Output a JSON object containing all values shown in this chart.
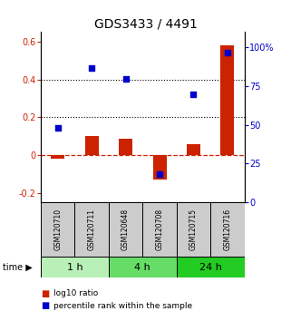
{
  "title": "GDS3433 / 4491",
  "samples": [
    "GSM120710",
    "GSM120711",
    "GSM120648",
    "GSM120708",
    "GSM120715",
    "GSM120716"
  ],
  "log10_ratio": [
    -0.02,
    0.1,
    0.085,
    -0.13,
    0.055,
    0.58
  ],
  "percentile_rank": [
    48,
    87,
    80,
    18,
    70,
    97
  ],
  "time_groups": [
    {
      "label": "1 h",
      "color": "#b8f0b8",
      "start": 0,
      "end": 2
    },
    {
      "label": "4 h",
      "color": "#66dd66",
      "start": 2,
      "end": 4
    },
    {
      "label": "24 h",
      "color": "#22cc22",
      "start": 4,
      "end": 6
    }
  ],
  "ylim_left": [
    -0.25,
    0.65
  ],
  "ylim_right": [
    0,
    110
  ],
  "yticks_left": [
    -0.2,
    0.0,
    0.2,
    0.4,
    0.6
  ],
  "ytick_labels_left": [
    "-0.2",
    "0",
    "0.2",
    "0.4",
    "0.6"
  ],
  "yticks_right": [
    0,
    25,
    50,
    75,
    100
  ],
  "ytick_labels_right": [
    "0",
    "25",
    "50",
    "75",
    "100%"
  ],
  "hlines": [
    0.2,
    0.4
  ],
  "bar_color_red": "#cc2200",
  "bar_color_blue": "#0000cc",
  "marker_size": 25,
  "bar_width": 0.4,
  "dashed_zero_color": "#cc2200",
  "sample_box_color": "#cccccc",
  "title_fontsize": 10,
  "tick_fontsize": 7,
  "sample_fontsize": 5.5,
  "time_fontsize": 8,
  "legend_fontsize": 6.5
}
